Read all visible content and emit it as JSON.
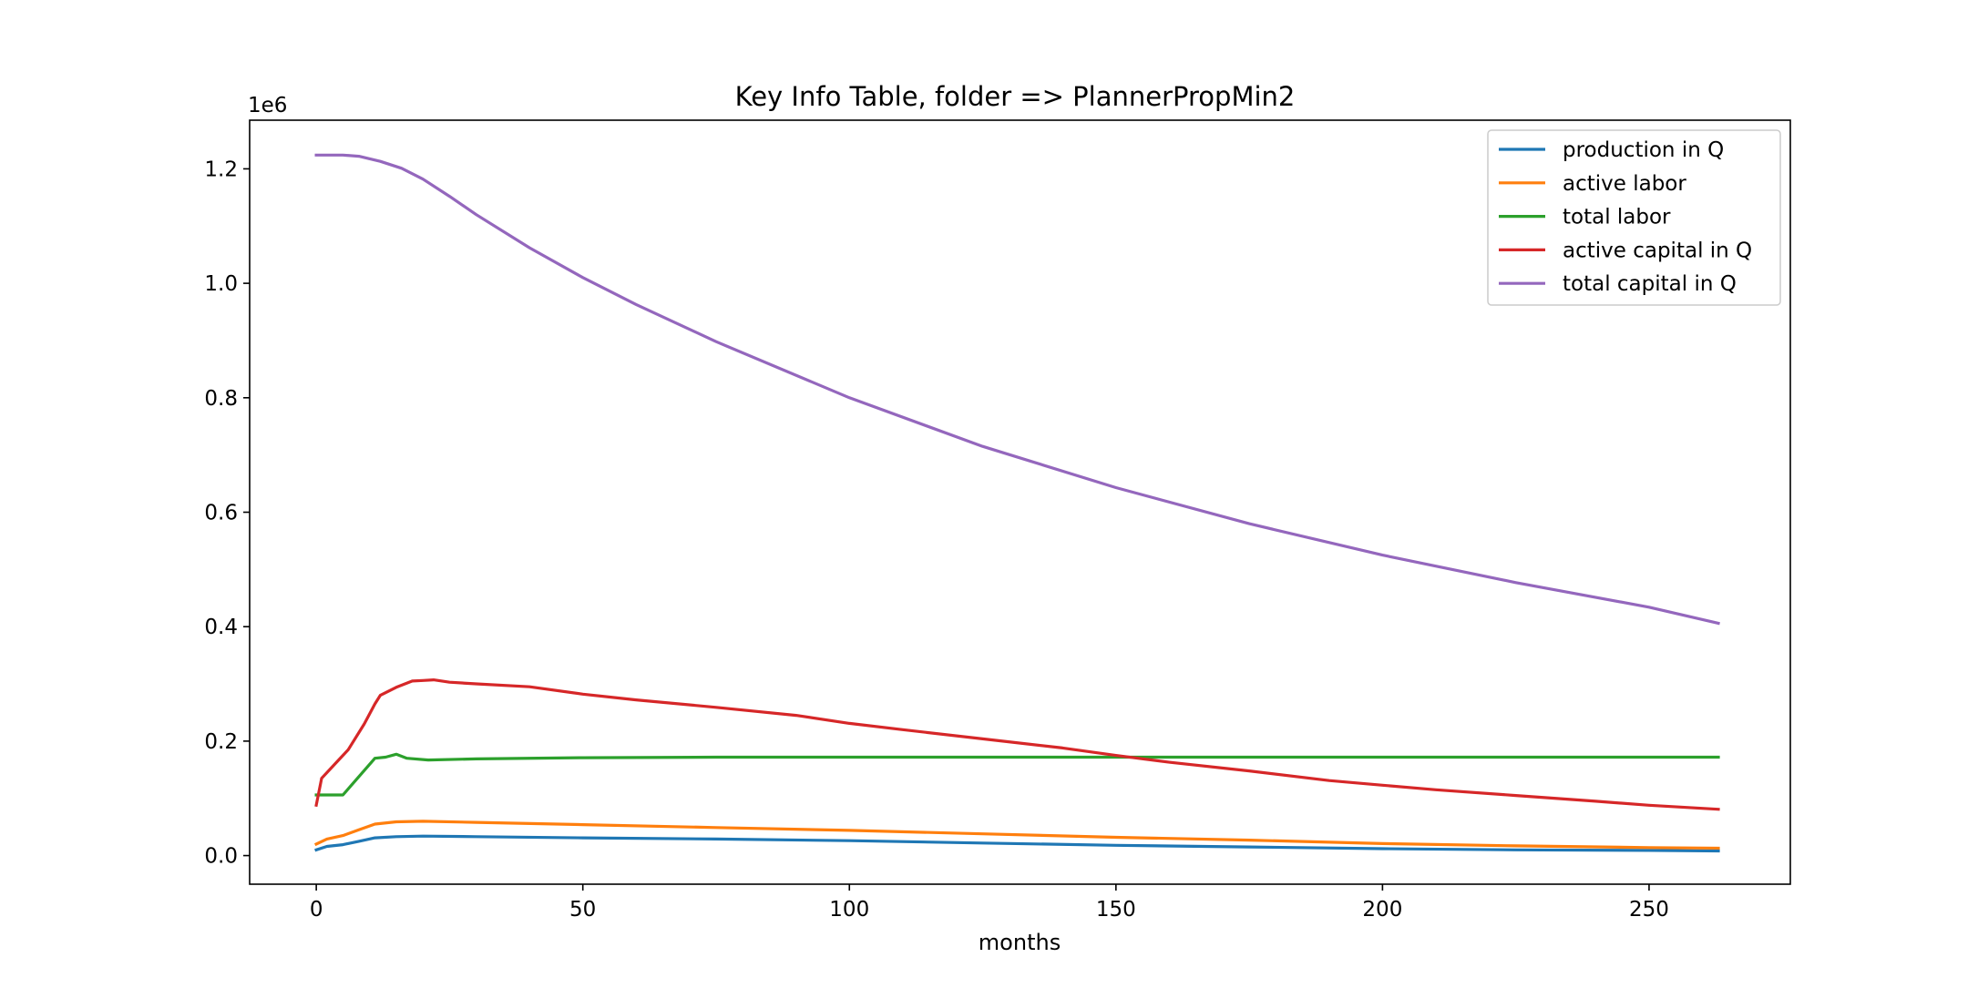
{
  "chart_data": {
    "type": "line",
    "title": "Key Info Table, folder => PlannerPropMin2",
    "xlabel": "months",
    "ylabel": "",
    "y_scale_label": "1e6",
    "xlim": [
      -12.5,
      276.5
    ],
    "ylim": [
      -50000,
      1285000
    ],
    "xticks": [
      0,
      50,
      100,
      150,
      200,
      250
    ],
    "yticks": [
      {
        "value": 0,
        "label": "0.0"
      },
      {
        "value": 200000,
        "label": "0.2"
      },
      {
        "value": 400000,
        "label": "0.4"
      },
      {
        "value": 600000,
        "label": "0.6"
      },
      {
        "value": 800000,
        "label": "0.8"
      },
      {
        "value": 1000000,
        "label": "1.0"
      },
      {
        "value": 1200000,
        "label": "1.2"
      }
    ],
    "grid": false,
    "legend_position": "top-right",
    "series": [
      {
        "name": "production in Q",
        "color": "#1f77b4",
        "points": [
          [
            0,
            10000
          ],
          [
            2,
            16000
          ],
          [
            5,
            19000
          ],
          [
            8,
            25000
          ],
          [
            11,
            31000
          ],
          [
            15,
            33000
          ],
          [
            20,
            34000
          ],
          [
            30,
            33000
          ],
          [
            50,
            31000
          ],
          [
            75,
            29000
          ],
          [
            100,
            26000
          ],
          [
            125,
            22000
          ],
          [
            150,
            18000
          ],
          [
            175,
            15000
          ],
          [
            200,
            12000
          ],
          [
            225,
            10000
          ],
          [
            250,
            9000
          ],
          [
            263,
            8000
          ]
        ]
      },
      {
        "name": "active labor",
        "color": "#ff7f0e",
        "points": [
          [
            0,
            20000
          ],
          [
            2,
            29000
          ],
          [
            5,
            35000
          ],
          [
            8,
            45000
          ],
          [
            11,
            55000
          ],
          [
            15,
            59000
          ],
          [
            20,
            60000
          ],
          [
            30,
            58000
          ],
          [
            50,
            54000
          ],
          [
            75,
            49000
          ],
          [
            100,
            44000
          ],
          [
            125,
            38000
          ],
          [
            150,
            32000
          ],
          [
            175,
            27000
          ],
          [
            200,
            21000
          ],
          [
            225,
            17000
          ],
          [
            250,
            14000
          ],
          [
            263,
            13000
          ]
        ]
      },
      {
        "name": "total labor",
        "color": "#2ca02c",
        "points": [
          [
            0,
            106000
          ],
          [
            5,
            106000
          ],
          [
            11,
            170000
          ],
          [
            13,
            172000
          ],
          [
            15,
            177000
          ],
          [
            17,
            170000
          ],
          [
            21,
            167000
          ],
          [
            30,
            169000
          ],
          [
            50,
            171000
          ],
          [
            75,
            172000
          ],
          [
            100,
            172000
          ],
          [
            150,
            172000
          ],
          [
            200,
            172000
          ],
          [
            263,
            172000
          ]
        ]
      },
      {
        "name": "active capital in Q",
        "color": "#d62728",
        "points": [
          [
            0,
            88000
          ],
          [
            1,
            135000
          ],
          [
            4,
            165000
          ],
          [
            6,
            185000
          ],
          [
            9,
            230000
          ],
          [
            11,
            265000
          ],
          [
            12,
            280000
          ],
          [
            15,
            294000
          ],
          [
            18,
            305000
          ],
          [
            20,
            306000
          ],
          [
            22,
            307000
          ],
          [
            25,
            303000
          ],
          [
            30,
            300000
          ],
          [
            40,
            295000
          ],
          [
            50,
            282000
          ],
          [
            60,
            272000
          ],
          [
            75,
            259000
          ],
          [
            90,
            245000
          ],
          [
            100,
            231000
          ],
          [
            110,
            220000
          ],
          [
            125,
            204000
          ],
          [
            140,
            188000
          ],
          [
            150,
            175000
          ],
          [
            160,
            163000
          ],
          [
            175,
            148000
          ],
          [
            190,
            131000
          ],
          [
            200,
            123000
          ],
          [
            210,
            115000
          ],
          [
            225,
            105000
          ],
          [
            240,
            95000
          ],
          [
            250,
            88000
          ],
          [
            263,
            81000
          ]
        ]
      },
      {
        "name": "total capital in Q",
        "color": "#9467bd",
        "points": [
          [
            0,
            1224000
          ],
          [
            5,
            1224000
          ],
          [
            8,
            1222000
          ],
          [
            12,
            1213000
          ],
          [
            16,
            1201000
          ],
          [
            20,
            1182000
          ],
          [
            25,
            1152000
          ],
          [
            30,
            1120000
          ],
          [
            40,
            1062000
          ],
          [
            50,
            1010000
          ],
          [
            60,
            963000
          ],
          [
            75,
            898000
          ],
          [
            100,
            800000
          ],
          [
            125,
            715000
          ],
          [
            150,
            643000
          ],
          [
            175,
            580000
          ],
          [
            200,
            525000
          ],
          [
            225,
            477000
          ],
          [
            250,
            434000
          ],
          [
            263,
            406000
          ]
        ]
      }
    ]
  }
}
